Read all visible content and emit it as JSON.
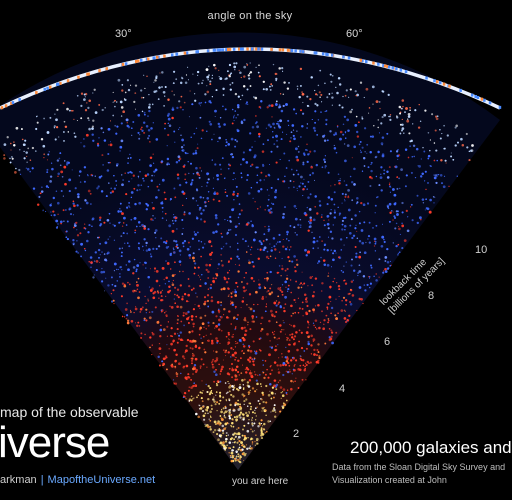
{
  "arc": {
    "title": "angle on the sky",
    "tick_30": "30°",
    "tick_60": "60°"
  },
  "lookback_axis": {
    "title_line1": "lookback time",
    "title_line2": "[billions of years]",
    "ticks": [
      "2",
      "4",
      "6",
      "8",
      "10"
    ]
  },
  "origin_label": "you are here",
  "headline": {
    "line1": "map of the observable",
    "line2": "iverse"
  },
  "credit": {
    "author": "arkman",
    "separator": "|",
    "site": "MapoftheUniverse.net"
  },
  "info": {
    "count": "200,000 galaxies and",
    "source1": "Data from the Sloan Digital Sky Survey and",
    "source2": "Visualization created at John"
  },
  "colors": {
    "near": "#ffe27a",
    "mid": "#ff3b2a",
    "far": "#3f69ff",
    "outer": "#bcd6ff",
    "accent": "#6aa9ff"
  }
}
